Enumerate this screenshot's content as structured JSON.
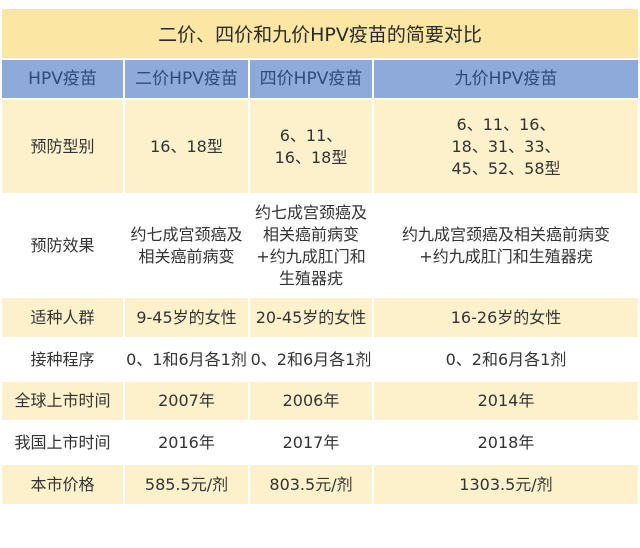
{
  "title": "二价、四价和九价HPV疫苗的简要对比",
  "headers": [
    "HPV疫苗",
    "二价HPV疫苗",
    "四价HPV疫苗",
    "九价HPV疫苗"
  ],
  "rows": [
    {
      "label": "预防型别",
      "values": [
        "16、18型",
        "6、11、\n16、18型",
        "6、11、16、\n18、31、33、\n45、52、58型"
      ]
    },
    {
      "label": "预防效果",
      "values": [
        "约七成宫颈癌及相关癌前病变",
        "约七成宫颈癌及相关癌前病变+约九成肛门和生殖器疣",
        "约九成宫颈癌及相关癌前病变+约九成肛门和生殖器疣"
      ]
    },
    {
      "label": "适种人群",
      "values": [
        "9-45岁的女性",
        "20-45岁的女性",
        "16-26岁的女性"
      ]
    },
    {
      "label": "接种程序",
      "values": [
        "0、1和6月各1剂",
        "0、2和6月各1剂",
        "0、2和6月各1剂"
      ]
    },
    {
      "label": "全球上市时间",
      "values": [
        "2007年",
        "2006年",
        "2014年"
      ]
    },
    {
      "label": "我国上市时间",
      "values": [
        "2016年",
        "2017年",
        "2018年"
      ]
    },
    {
      "label": "本市价格",
      "values": [
        "585.5元/剂",
        "803.5元/剂",
        "1303.5元/剂"
      ]
    }
  ],
  "colors": {
    "title_bg": "#fce6a3",
    "header_bg": "#8eaadb",
    "header_text": "#2f4a7a",
    "row_alt_bg": "#fdf1cc"
  }
}
